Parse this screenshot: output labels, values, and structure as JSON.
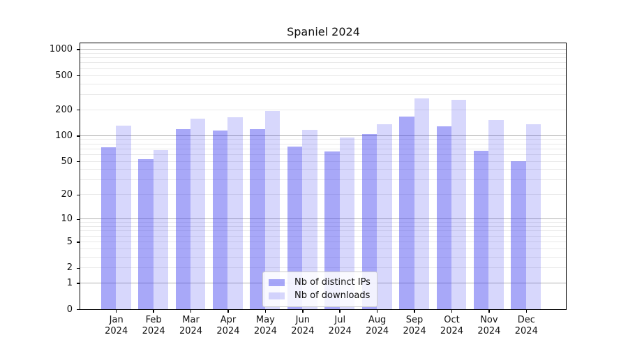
{
  "title": "Spaniel 2024",
  "chart_data": {
    "type": "bar",
    "title": "Spaniel 2024",
    "categories": [
      "Jan 2024",
      "Feb 2024",
      "Mar 2024",
      "Apr 2024",
      "May 2024",
      "Jun 2024",
      "Jul 2024",
      "Aug 2024",
      "Sep 2024",
      "Oct 2024",
      "Nov 2024",
      "Dec 2024"
    ],
    "series": [
      {
        "name": "Nb of distinct IPs",
        "values": [
          73,
          53,
          118,
          115,
          118,
          74,
          65,
          104,
          168,
          129,
          66,
          50
        ]
      },
      {
        "name": "Nb of downloads",
        "values": [
          131,
          68,
          158,
          163,
          195,
          117,
          95,
          137,
          272,
          260,
          151,
          135
        ]
      }
    ],
    "xlabel": "",
    "ylabel": "",
    "yscale": "log(1+x)",
    "ylim": [
      0,
      1180
    ],
    "ytick_labels": [
      "0",
      "1",
      "2",
      "5",
      "10",
      "20",
      "50",
      "100",
      "200",
      "500",
      "1000"
    ],
    "ytick_values": [
      0,
      1,
      2,
      5,
      10,
      20,
      50,
      100,
      200,
      500,
      1000
    ],
    "minor_grid_values": [
      2,
      3,
      4,
      5,
      6,
      7,
      8,
      9,
      20,
      30,
      40,
      50,
      60,
      70,
      80,
      90,
      200,
      300,
      400,
      500,
      600,
      700,
      800,
      900
    ],
    "major_grid_values": [
      1,
      10,
      100,
      1000
    ],
    "grid": "major and minor horizontal gridlines",
    "legend_position": "inside, lower center"
  },
  "colors": {
    "bar_distinct_ips": "rgba(65,65,240,0.46)",
    "bar_downloads": "rgba(65,65,240,0.21)",
    "grid_major": "#b0b0b0",
    "grid_minor": "#e9e9e9",
    "axis_spine": "#000000",
    "text": "#111111",
    "legend_border": "#cccccc"
  }
}
